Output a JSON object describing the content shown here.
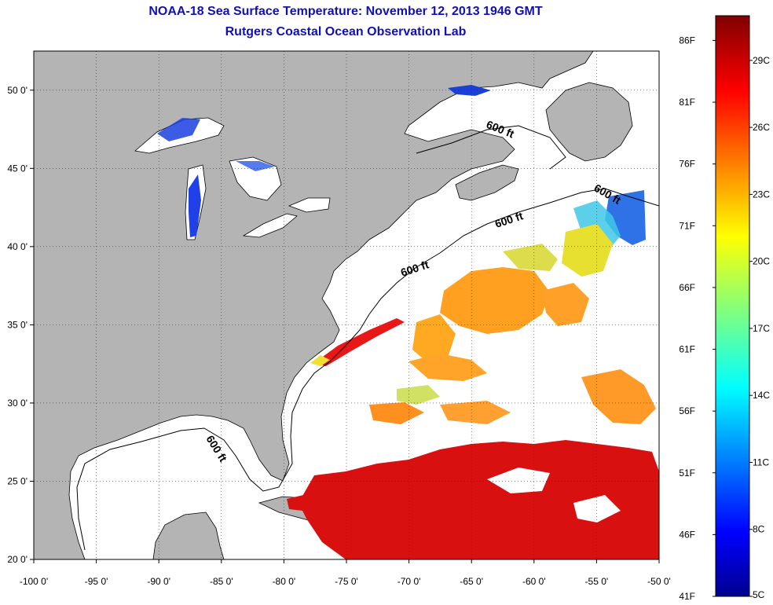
{
  "title": "NOAA-18 Sea Surface Temperature:  November 12, 2013 1946 GMT",
  "subtitle": "Rutgers Coastal Ocean Observation Lab",
  "map": {
    "lon_range": [
      -100,
      -50
    ],
    "lat_range": [
      20,
      52.5
    ],
    "x_tick_labels": [
      "-100 0'",
      "-95 0'",
      "-90 0'",
      "-85 0'",
      "-80 0'",
      "-75 0'",
      "-70 0'",
      "-65 0'",
      "-60 0'",
      "-55 0'",
      "-50 0'"
    ],
    "y_tick_labels": [
      "20 0'",
      "25 0'",
      "30 0'",
      "35 0'",
      "40 0'",
      "45 0'",
      "50 0'"
    ],
    "contour_labels": [
      "600 ft",
      "600 ft",
      "600 ft",
      "600 ft",
      "600 ft"
    ],
    "grid": "dotted",
    "land_color": "#b4b4b4",
    "no_data_color": "#ffffff"
  },
  "colorbar": {
    "fahrenheit_labels": [
      "86F",
      "81F",
      "76F",
      "71F",
      "66F",
      "61F",
      "56F",
      "51F",
      "46F",
      "41F"
    ],
    "celsius_labels": [
      "29C",
      "26C",
      "23C",
      "20C",
      "17C",
      "14C",
      "11C",
      "8C",
      "5C"
    ],
    "range_c": [
      5,
      31
    ],
    "range_f": [
      41,
      88
    ],
    "colormap": "jet"
  }
}
